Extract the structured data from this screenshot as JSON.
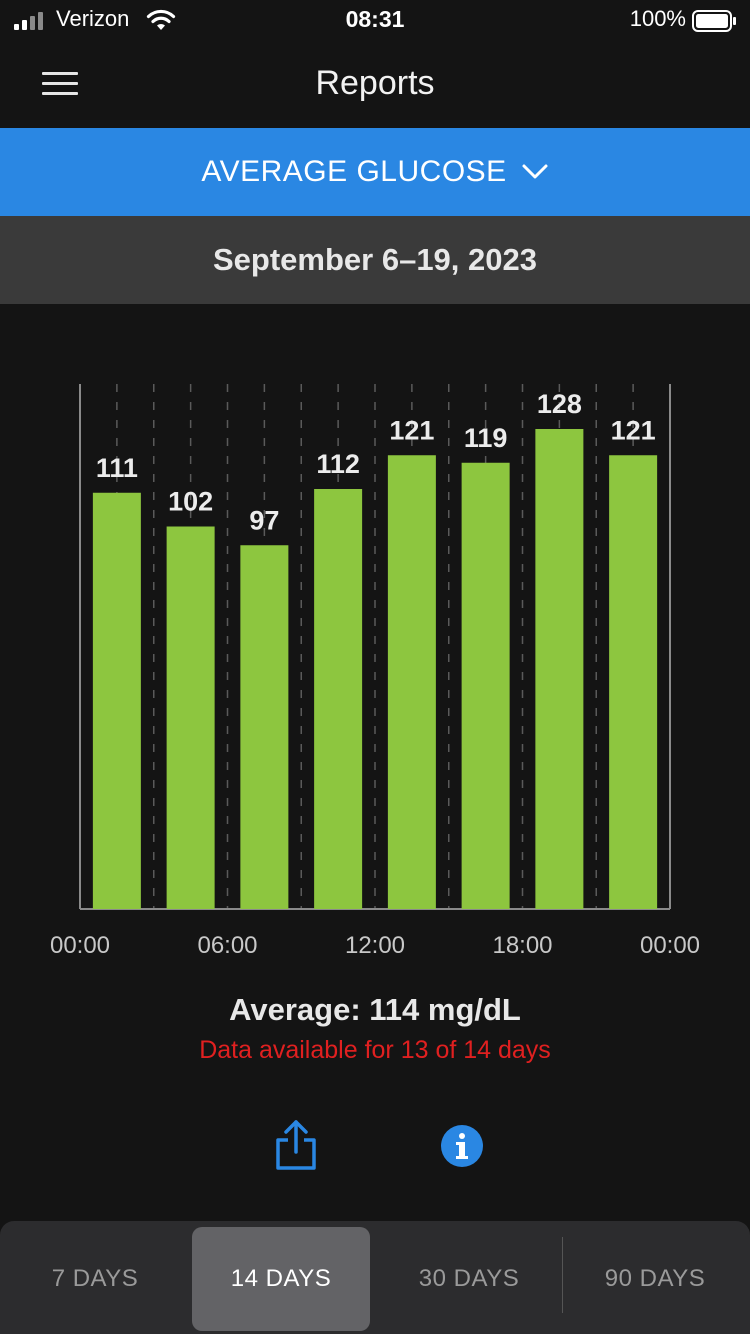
{
  "status_bar": {
    "carrier": "Verizon",
    "time": "08:31",
    "battery": "100%"
  },
  "nav": {
    "title": "Reports"
  },
  "report_selector": {
    "label": "AVERAGE GLUCOSE"
  },
  "date_range": "September 6–19, 2023",
  "chart_data": {
    "type": "bar",
    "x_tick_labels": [
      "00:00",
      "06:00",
      "12:00",
      "18:00",
      "00:00"
    ],
    "values": [
      111,
      102,
      97,
      112,
      121,
      119,
      128,
      121
    ],
    "value_labels": [
      "111",
      "102",
      "97",
      "112",
      "121",
      "119",
      "128",
      "121"
    ],
    "bucket_hours": 3,
    "ylim": [
      0,
      140
    ],
    "grid": "dashed vertical",
    "colors": {
      "bar": "#8dc63f",
      "axis": "#8a8a8a"
    }
  },
  "summary": {
    "average": "Average: 114 mg/dL",
    "availability": "Data available for 13 of 14 days"
  },
  "actions": {
    "share_icon": "share-icon",
    "info_icon": "info-icon"
  },
  "tabs": [
    {
      "label": "7 DAYS",
      "active": false
    },
    {
      "label": "14 DAYS",
      "active": true
    },
    {
      "label": "30 DAYS",
      "active": false
    },
    {
      "label": "90 DAYS",
      "active": false
    }
  ],
  "colors": {
    "accent": "#2a87e3",
    "warning": "#e02020"
  }
}
